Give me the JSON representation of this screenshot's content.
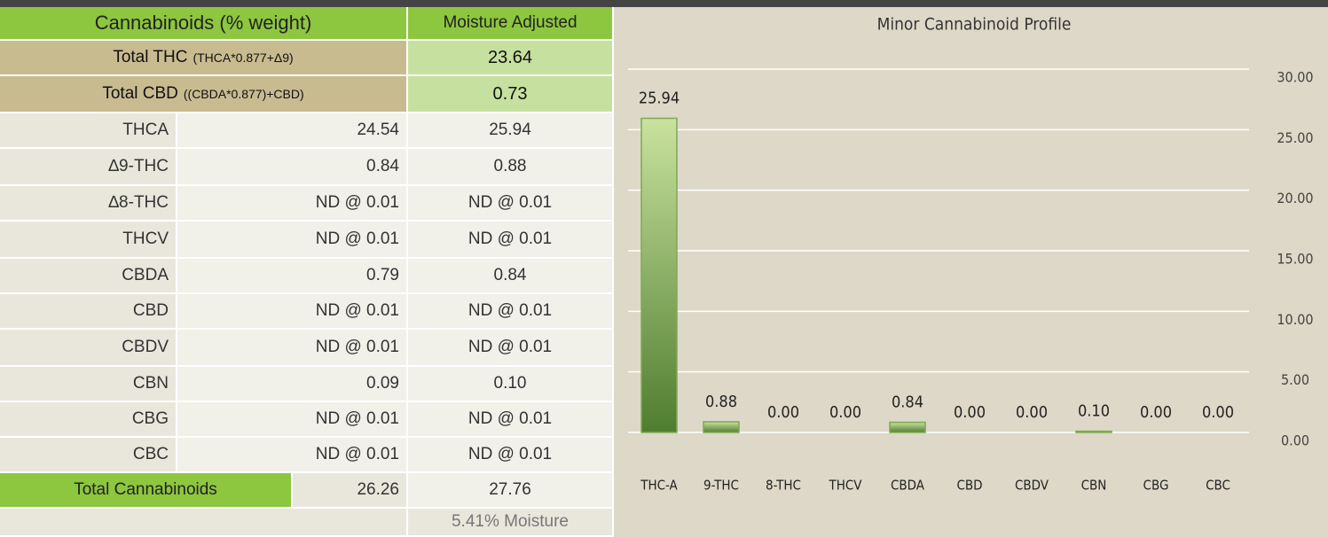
{
  "table": {
    "header": [
      "Cannabinoids (% weight)",
      "Moisture Adjusted"
    ],
    "totals": [
      {
        "label": "Total THC",
        "formula": "(THCA*0.877+Δ9)",
        "value": "23.64"
      },
      {
        "label": "Total CBD",
        "formula": "((CBDA*0.877)+CBD)",
        "value": "0.73"
      }
    ],
    "rows": [
      [
        "THCA",
        "24.54",
        "25.94"
      ],
      [
        "∆9-THC",
        "0.84",
        "0.88"
      ],
      [
        "∆8-THC",
        "ND @ 0.01",
        "ND @ 0.01"
      ],
      [
        "THCV",
        "ND @ 0.01",
        "ND @ 0.01"
      ],
      [
        "CBDA",
        "0.79",
        "0.84"
      ],
      [
        "CBD",
        "ND @ 0.01",
        "ND @ 0.01"
      ],
      [
        "CBDV",
        "ND @ 0.01",
        "ND @ 0.01"
      ],
      [
        "CBN",
        "0.09",
        "0.10"
      ],
      [
        "CBG",
        "ND @ 0.01",
        "ND @ 0.01"
      ],
      [
        "CBC",
        "ND @ 0.01",
        "ND @ 0.01"
      ]
    ],
    "total": {
      "label": "Total Cannabinoids",
      "value": "26.26",
      "adjusted": "27.76"
    },
    "moisture": "5.41% Moisture"
  },
  "chart_data": {
    "type": "bar",
    "title": "Minor Cannabinoid Profile",
    "categories": [
      "THC-A",
      "9-THC",
      "8-THC",
      "THCV",
      "CBDA",
      "CBD",
      "CBDV",
      "CBN",
      "CBG",
      "CBC"
    ],
    "values": [
      25.94,
      0.88,
      0,
      0,
      0.84,
      0,
      0,
      0.1,
      0,
      0
    ],
    "value_labels": [
      "25.94",
      "0.88",
      "0.00",
      "0.00",
      "0.84",
      "0.00",
      "0.00",
      "0.10",
      "0.00",
      "0.00"
    ],
    "color": "#7fa852",
    "ylim": [
      0,
      30
    ],
    "yticks": [
      {
        "value": 0,
        "label": "0.00"
      },
      {
        "value": 5,
        "label": "5.00"
      },
      {
        "value": 10,
        "label": "10.00"
      },
      {
        "value": 15,
        "label": "15.00"
      },
      {
        "value": 20,
        "label": "20.00"
      },
      {
        "value": 25,
        "label": "25.00"
      },
      {
        "value": 30,
        "label": "30.00"
      }
    ],
    "grid": true
  }
}
